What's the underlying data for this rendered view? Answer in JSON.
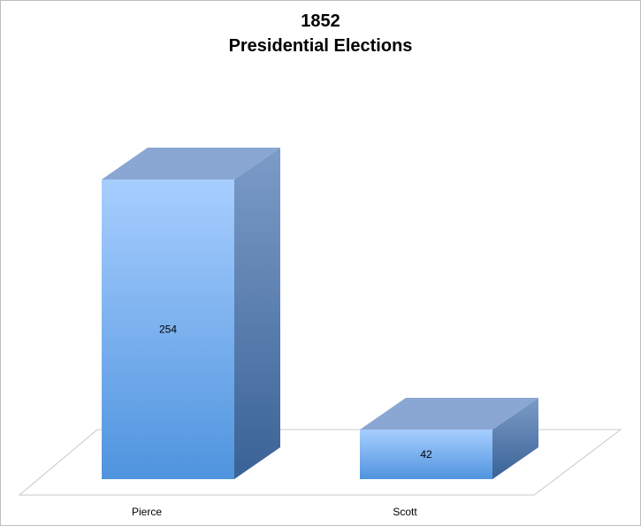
{
  "chart_data": {
    "type": "bar",
    "title_lines": [
      "1852",
      "Presidential Elections"
    ],
    "categories": [
      "Pierce",
      "Scott"
    ],
    "values": [
      254,
      42
    ],
    "data_labels": [
      "254",
      "42"
    ],
    "xlabel": "",
    "ylabel": "",
    "ylim": [
      0,
      254
    ],
    "grid": false,
    "legend": "none",
    "colors": {
      "front_top": "#a7ceff",
      "front_bottom": "#4f94de",
      "top_face": "#8aa6d2",
      "side_light": "#7c9cc8",
      "side_dark": "#3a6296",
      "floor": "#ffffff",
      "floor_stroke": "#c8c8c8"
    }
  }
}
